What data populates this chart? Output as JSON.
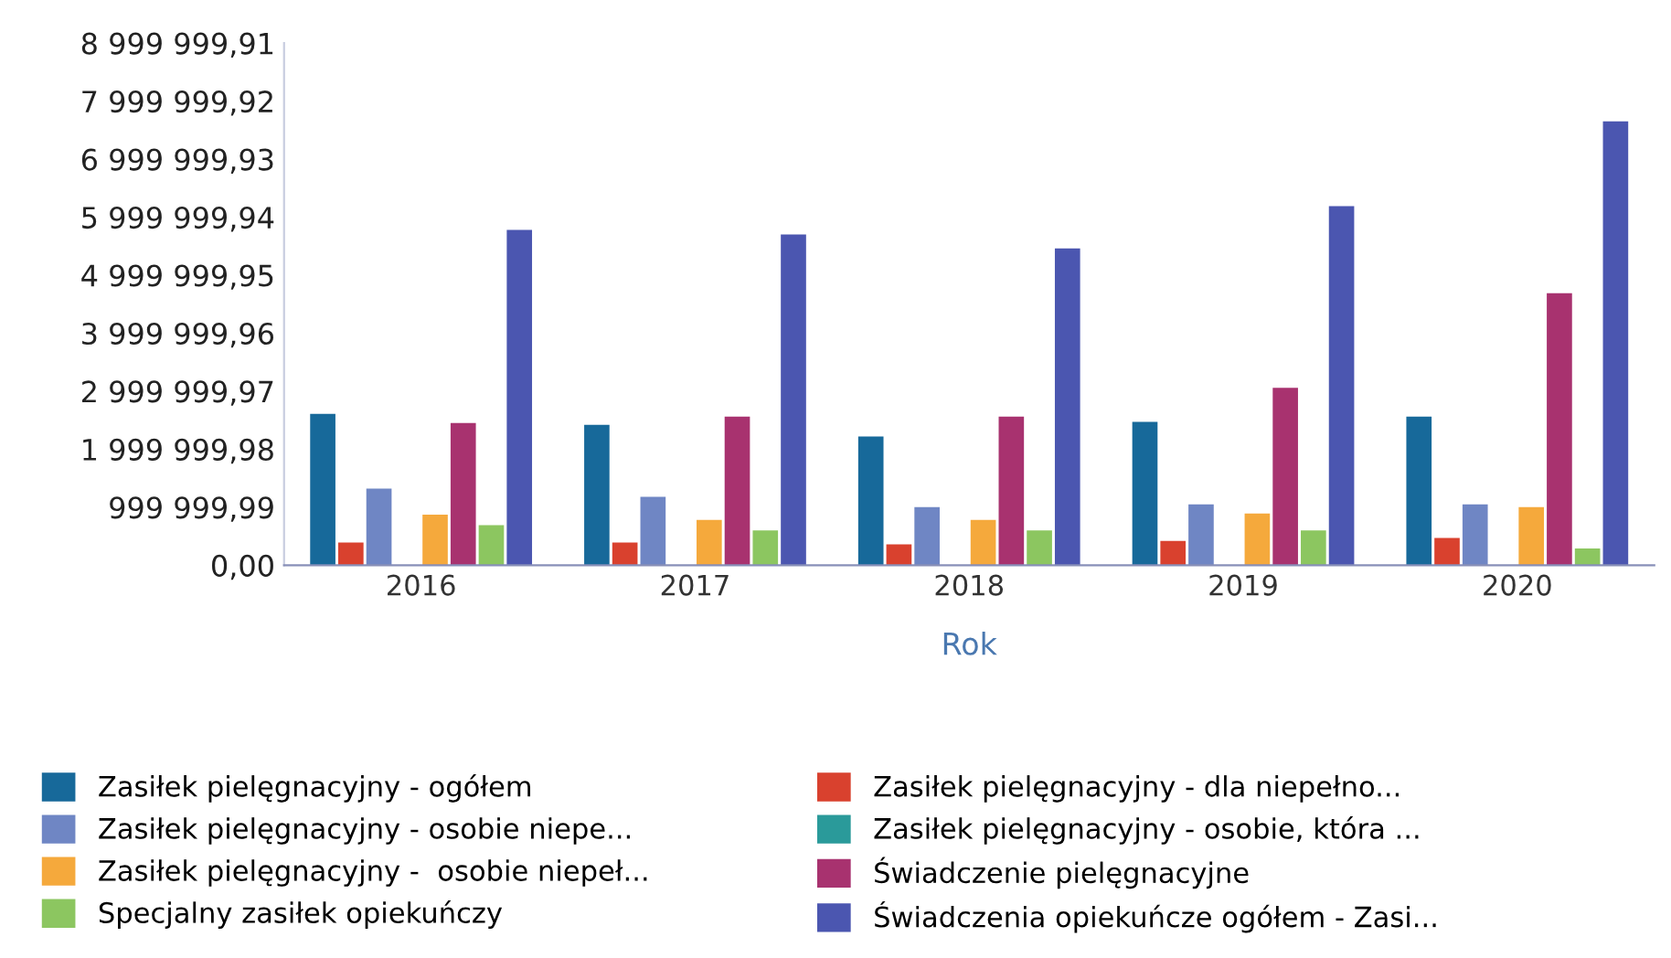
{
  "chart_data": {
    "type": "bar",
    "xlabel": "Rok",
    "categories": [
      "2016",
      "2017",
      "2018",
      "2019",
      "2020"
    ],
    "series": [
      {
        "name": "Zasiłek pielęgnacyjny - ogółem",
        "color": "#17699a",
        "values": [
          2610000,
          2420000,
          2220000,
          2470000,
          2560000
        ]
      },
      {
        "name": "Zasiłek pielęgnacyjny - dla niepełno...",
        "color": "#d9412e",
        "values": [
          390000,
          390000,
          360000,
          420000,
          470000
        ]
      },
      {
        "name": "Zasiłek pielęgnacyjny - osobie niepe...",
        "color": "#6f86c4",
        "values": [
          1320000,
          1180000,
          1000000,
          1050000,
          1050000
        ]
      },
      {
        "name": "Zasiłek pielęgnacyjny - osobie, która ...",
        "color": "#2a9a9a",
        "values": [
          0,
          0,
          0,
          0,
          0
        ]
      },
      {
        "name": "Zasiłek pielęgnacyjny -  osobie niepeł...",
        "color": "#f5a93c",
        "values": [
          870000,
          780000,
          780000,
          890000,
          1000000
        ]
      },
      {
        "name": "Świadczenie pielęgnacyjne",
        "color": "#a8326f",
        "values": [
          2450000,
          2560000,
          2560000,
          3060000,
          4690000
        ]
      },
      {
        "name": "Specjalny zasiłek opiekuńczy",
        "color": "#8cc660",
        "values": [
          690000,
          600000,
          600000,
          600000,
          290000
        ]
      },
      {
        "name": "Świadczenia opiekuńcze ogółem - Zasi...",
        "color": "#4b56b0",
        "values": [
          5780000,
          5700000,
          5460000,
          6190000,
          7650000
        ]
      }
    ],
    "ylim": [
      0,
      8999999.91
    ],
    "yticks": [
      {
        "value": 0,
        "label": "0,00"
      },
      {
        "value": 999999.99,
        "label": "999 999,99"
      },
      {
        "value": 1999999.98,
        "label": "1 999 999,98"
      },
      {
        "value": 2999999.97,
        "label": "2 999 999,97"
      },
      {
        "value": 3999999.96,
        "label": "3 999 999,96"
      },
      {
        "value": 4999999.95,
        "label": "4 999 999,95"
      },
      {
        "value": 5999999.94,
        "label": "5 999 999,94"
      },
      {
        "value": 6999999.93,
        "label": "6 999 999,93"
      },
      {
        "value": 7999999.92,
        "label": "7 999 999,92"
      },
      {
        "value": 8999999.91,
        "label": "8 999 999,91"
      }
    ],
    "legend": "bottom"
  }
}
